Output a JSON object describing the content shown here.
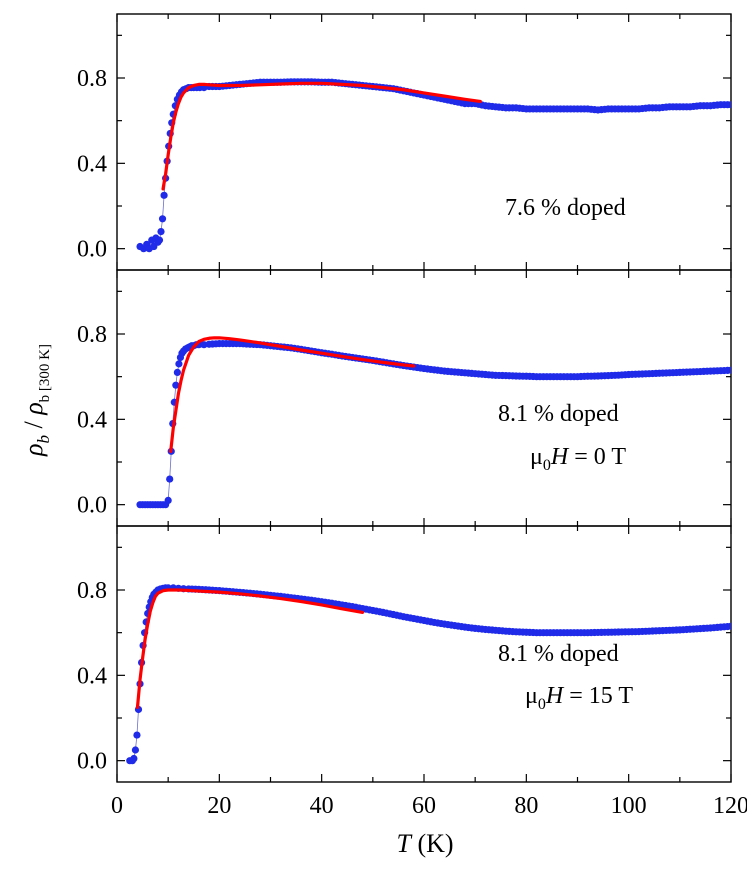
{
  "chart_data": {
    "type": "scatter",
    "x_axis": {
      "label_italic": "T",
      "label_rest": " (K)",
      "range": [
        0,
        120
      ],
      "ticks": [
        0,
        20,
        40,
        60,
        80,
        100,
        120
      ],
      "tick_labels": [
        "0",
        "20",
        "40",
        "60",
        "80",
        "100",
        "120"
      ]
    },
    "y_axis": {
      "label_main": "ρ",
      "label_sub": "b",
      "label_div": " / ",
      "label_main2": "ρ",
      "label_sub2": "b [300 K]",
      "range": [
        -0.1,
        1.1
      ],
      "ticks": [
        0.0,
        0.4,
        0.8
      ],
      "tick_labels": [
        "0.0",
        "0.4",
        "0.8"
      ]
    },
    "colors": {
      "data": "#1f2be8",
      "fit": "#ff0000",
      "axis": "#000000"
    },
    "panels": [
      {
        "annotations": [
          "7.6 % doped"
        ],
        "series": [
          {
            "name": "data",
            "style": "markers",
            "x": [
              4.5,
              5.2,
              5.8,
              6.3,
              6.8,
              7.2,
              7.6,
              8.0,
              8.3,
              8.6,
              8.9,
              9.2,
              9.5,
              9.8,
              10.1,
              10.4,
              10.7,
              11.0,
              11.4,
              11.8,
              12.2,
              12.6,
              13.0,
              13.5,
              14.0,
              14.5,
              15.0,
              15.6,
              16.2,
              17.0,
              18,
              20,
              22,
              24,
              26,
              28,
              30,
              32,
              34,
              36,
              38,
              40,
              42,
              44,
              46,
              48,
              50,
              52,
              54,
              56,
              58,
              60,
              62,
              64,
              66,
              68,
              70,
              72,
              74,
              76,
              78,
              80,
              82,
              84,
              86,
              88,
              90,
              92,
              94,
              96,
              98,
              100,
              102,
              104,
              106,
              108,
              110,
              112,
              114,
              116,
              118,
              120
            ],
            "y": [
              0.01,
              0.0,
              0.02,
              0.0,
              0.04,
              0.01,
              0.05,
              0.03,
              0.04,
              0.08,
              0.14,
              0.25,
              0.33,
              0.41,
              0.48,
              0.54,
              0.59,
              0.63,
              0.67,
              0.7,
              0.72,
              0.735,
              0.745,
              0.75,
              0.755,
              0.755,
              0.755,
              0.755,
              0.755,
              0.755,
              0.76,
              0.76,
              0.765,
              0.77,
              0.775,
              0.78,
              0.78,
              0.78,
              0.782,
              0.782,
              0.782,
              0.78,
              0.78,
              0.775,
              0.77,
              0.765,
              0.76,
              0.755,
              0.75,
              0.74,
              0.73,
              0.72,
              0.71,
              0.7,
              0.69,
              0.68,
              0.68,
              0.67,
              0.665,
              0.66,
              0.66,
              0.655,
              0.655,
              0.655,
              0.655,
              0.655,
              0.655,
              0.655,
              0.65,
              0.655,
              0.655,
              0.655,
              0.655,
              0.66,
              0.66,
              0.665,
              0.665,
              0.665,
              0.67,
              0.67,
              0.675,
              0.675
            ]
          },
          {
            "name": "fit",
            "style": "line",
            "x": [
              9.0,
              9.5,
              10.0,
              10.5,
              11.0,
              11.5,
              12.0,
              12.5,
              13.0,
              14.0,
              15.0,
              16.0,
              17.0,
              18.0,
              20,
              24,
              28,
              32,
              36,
              40,
              44,
              48,
              52,
              56,
              60,
              64,
              68,
              71
            ],
            "y": [
              0.28,
              0.35,
              0.44,
              0.52,
              0.59,
              0.64,
              0.68,
              0.71,
              0.73,
              0.755,
              0.765,
              0.77,
              0.77,
              0.768,
              0.765,
              0.765,
              0.768,
              0.772,
              0.775,
              0.775,
              0.77,
              0.765,
              0.755,
              0.745,
              0.73,
              0.715,
              0.7,
              0.69
            ]
          }
        ]
      },
      {
        "annotations": [
          "8.1 % doped",
          "μ",
          "0",
          "H",
          " = 0 T"
        ],
        "series": [
          {
            "name": "data",
            "style": "markers",
            "x": [
              4.5,
              5.0,
              5.5,
              6.0,
              6.5,
              7.0,
              7.5,
              8.0,
              8.5,
              9.0,
              9.5,
              10.0,
              10.3,
              10.6,
              10.9,
              11.2,
              11.5,
              11.8,
              12.1,
              12.4,
              12.7,
              13.0,
              13.4,
              13.8,
              14.2,
              14.6,
              15.0,
              15.5,
              16.0,
              17.0,
              18,
              20,
              22,
              24,
              26,
              28,
              30,
              32,
              34,
              36,
              38,
              40,
              42,
              44,
              46,
              48,
              50,
              52,
              54,
              56,
              58,
              60,
              62,
              64,
              66,
              68,
              70,
              72,
              74,
              76,
              78,
              80,
              82,
              84,
              86,
              88,
              90,
              92,
              94,
              96,
              98,
              100,
              102,
              104,
              106,
              108,
              110,
              112,
              114,
              116,
              118,
              120
            ],
            "y": [
              0.0,
              0.0,
              0.0,
              0.0,
              0.0,
              0.0,
              0.0,
              0.0,
              0.0,
              0.0,
              0.0,
              0.02,
              0.12,
              0.25,
              0.38,
              0.48,
              0.56,
              0.62,
              0.66,
              0.69,
              0.71,
              0.72,
              0.73,
              0.735,
              0.74,
              0.745,
              0.745,
              0.75,
              0.75,
              0.75,
              0.752,
              0.755,
              0.755,
              0.755,
              0.752,
              0.75,
              0.745,
              0.74,
              0.735,
              0.728,
              0.72,
              0.712,
              0.705,
              0.697,
              0.69,
              0.683,
              0.676,
              0.668,
              0.66,
              0.652,
              0.645,
              0.638,
              0.632,
              0.626,
              0.622,
              0.618,
              0.614,
              0.61,
              0.606,
              0.605,
              0.603,
              0.602,
              0.6,
              0.6,
              0.6,
              0.6,
              0.6,
              0.602,
              0.603,
              0.605,
              0.607,
              0.61,
              0.612,
              0.614,
              0.616,
              0.618,
              0.62,
              0.622,
              0.624,
              0.626,
              0.628,
              0.63
            ]
          },
          {
            "name": "fit",
            "style": "line",
            "x": [
              10.5,
              11.0,
              11.5,
              12.0,
              12.5,
              13.0,
              14.0,
              15.0,
              16.0,
              17.0,
              18.0,
              19.0,
              20,
              22,
              24,
              26,
              28,
              30,
              32,
              36,
              40,
              44,
              48,
              52,
              56,
              58
            ],
            "y": [
              0.25,
              0.36,
              0.44,
              0.52,
              0.58,
              0.63,
              0.7,
              0.74,
              0.765,
              0.775,
              0.78,
              0.782,
              0.782,
              0.778,
              0.772,
              0.765,
              0.758,
              0.75,
              0.742,
              0.725,
              0.71,
              0.695,
              0.68,
              0.667,
              0.655,
              0.65
            ]
          }
        ]
      },
      {
        "annotations": [
          "8.1 % doped",
          "μ",
          "0",
          "H",
          " = 15 T"
        ],
        "series": [
          {
            "name": "data",
            "style": "markers",
            "x": [
              2.5,
              3.0,
              3.3,
              3.6,
              3.9,
              4.2,
              4.5,
              4.8,
              5.1,
              5.4,
              5.7,
              6.0,
              6.3,
              6.6,
              6.9,
              7.2,
              7.6,
              8.0,
              8.5,
              9.0,
              9.5,
              10.0,
              11.0,
              12.0,
              13.0,
              14,
              16,
              18,
              20,
              22,
              24,
              26,
              28,
              30,
              32,
              34,
              36,
              38,
              40,
              42,
              44,
              46,
              48,
              50,
              52,
              54,
              56,
              58,
              60,
              62,
              64,
              66,
              68,
              70,
              72,
              74,
              76,
              78,
              80,
              82,
              84,
              86,
              88,
              90,
              92,
              94,
              96,
              98,
              100,
              102,
              104,
              106,
              108,
              110,
              112,
              114,
              116,
              118,
              120
            ],
            "y": [
              0.0,
              0.0,
              0.01,
              0.05,
              0.12,
              0.24,
              0.36,
              0.46,
              0.54,
              0.6,
              0.65,
              0.69,
              0.72,
              0.745,
              0.765,
              0.78,
              0.79,
              0.8,
              0.805,
              0.808,
              0.81,
              0.81,
              0.81,
              0.808,
              0.806,
              0.805,
              0.803,
              0.8,
              0.797,
              0.793,
              0.789,
              0.785,
              0.78,
              0.775,
              0.77,
              0.764,
              0.758,
              0.752,
              0.745,
              0.738,
              0.73,
              0.722,
              0.713,
              0.704,
              0.695,
              0.685,
              0.675,
              0.666,
              0.657,
              0.648,
              0.64,
              0.633,
              0.626,
              0.62,
              0.615,
              0.611,
              0.607,
              0.604,
              0.602,
              0.6,
              0.6,
              0.6,
              0.6,
              0.6,
              0.6,
              0.601,
              0.602,
              0.603,
              0.604,
              0.605,
              0.607,
              0.609,
              0.611,
              0.613,
              0.616,
              0.619,
              0.622,
              0.626,
              0.63
            ]
          },
          {
            "name": "fit",
            "style": "line",
            "x": [
              4.0,
              4.5,
              5.0,
              5.5,
              6.0,
              6.5,
              7.0,
              7.5,
              8.0,
              9.0,
              10.0,
              12,
              14,
              16,
              20,
              24,
              28,
              32,
              36,
              40,
              44,
              48
            ],
            "y": [
              0.25,
              0.38,
              0.48,
              0.57,
              0.64,
              0.7,
              0.74,
              0.77,
              0.785,
              0.797,
              0.8,
              0.8,
              0.798,
              0.795,
              0.79,
              0.782,
              0.772,
              0.76,
              0.746,
              0.73,
              0.712,
              0.695
            ]
          }
        ]
      }
    ]
  }
}
